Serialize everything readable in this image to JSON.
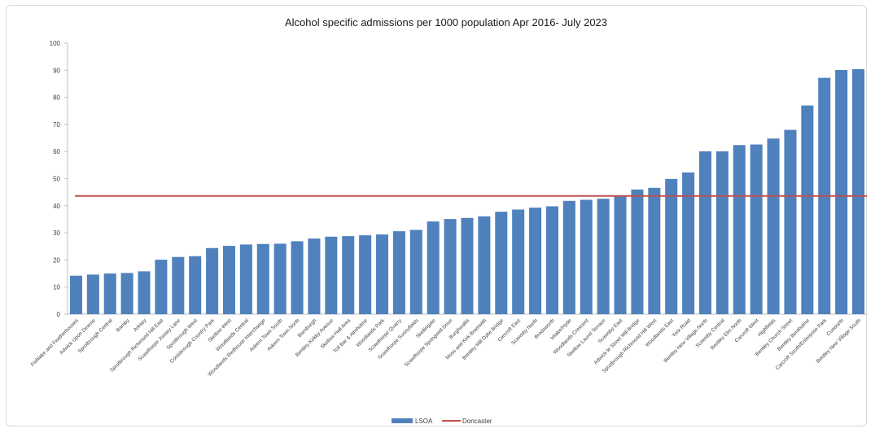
{
  "chart_data": {
    "type": "bar",
    "title": "Alcohol specific admissions per 1000 population Apr 2016- July 2023",
    "xlabel": "",
    "ylabel": "",
    "ylim": [
      0,
      100
    ],
    "yticks": [
      0,
      10,
      20,
      30,
      40,
      50,
      60,
      70,
      80,
      90,
      100
    ],
    "grid": false,
    "legend_position": "bottom",
    "categories": [
      "Fishlake and Featherhouses",
      "Adwick Upon Dearne",
      "Sprotbrough Central",
      "Barnby",
      "Arksey",
      "Sprotbrough Richmond Hill East",
      "Scawthorpe Jossey Lane",
      "Sprotbrough West",
      "Conisbrough Country Park",
      "Skellow West",
      "Woodlands Central",
      "Woodlands Redhouse Interchange",
      "Askern Town South",
      "Askern Town North",
      "Barnburgh",
      "Bentley Kirkby Avenue",
      "Skellow Hall Area",
      "Toll Bar & Almholme",
      "Woodlands Park",
      "Scawthorpe Quarry",
      "Scawthorpe Sunnyfields",
      "Skellingate",
      "Scawthorpe Springwell Drive",
      "Burghwallis",
      "Moss and Kirk Bramwith",
      "Bentley Mill Dyke Bridge",
      "Carcroft East",
      "Scawsby North",
      "Brodsworth",
      "Intake/Hyde",
      "Woodlands Crescent",
      "Skellow Laurel Terrace",
      "Scawsby East",
      "Adwick le Street Mill Bridge",
      "Sprotbrough Richmond Hill West",
      "Woodlands East",
      "York Road",
      "Bentley New Village North",
      "Scawsby Central",
      "Bentley Elm North",
      "Carcroft West",
      "Highfields",
      "Bentley Church Street",
      "Bentley Bentholme",
      "Carcroft South/Enterprise Park",
      "Cusworth",
      "Bentley New Village South"
    ],
    "series": [
      {
        "name": "LSOA",
        "type": "bar",
        "color": "#4f81bd",
        "values": [
          14.2,
          14.6,
          15.0,
          15.2,
          15.8,
          20.1,
          21.1,
          21.4,
          24.4,
          25.2,
          25.7,
          25.9,
          26.0,
          26.9,
          27.9,
          28.6,
          28.8,
          29.1,
          29.4,
          30.6,
          31.1,
          34.2,
          35.1,
          35.5,
          36.1,
          37.8,
          38.6,
          39.3,
          39.8,
          41.8,
          42.2,
          42.6,
          43.6,
          46.0,
          46.6,
          49.9,
          52.3,
          60.1,
          60.1,
          62.4,
          62.6,
          64.8,
          68.0,
          77.0,
          87.2,
          90.1,
          90.4
        ]
      },
      {
        "name": "Doncaster",
        "type": "line",
        "color": "#c0504d",
        "value": 43.6
      }
    ]
  }
}
